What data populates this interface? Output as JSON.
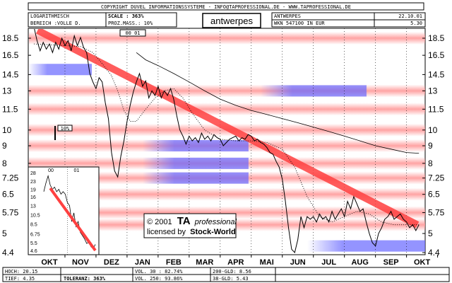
{
  "copyright": "COPYRIGHT  DUVEL INFORMATIONSSYSTEME - INFO@TAPROFESSIONAL.DE - WWW.TAPROFESSIONAL.DE",
  "header": {
    "scale_type": "LOGARITHMISCH",
    "range": "BEREICH :VOLLE D.",
    "scale": "SCALE : 363%",
    "proz_mass": "PROZ.MASS.:  10%",
    "title": "antwerpes",
    "name_upper": "ANTWERPES",
    "wkn": "WKN 547100    IN EUR",
    "date": "22.10.01",
    "last_price": "5.30",
    "period_selector": "00 01",
    "scale_marker": "10%"
  },
  "stamp": {
    "line1": "© 2001",
    "line2_bold": "TA",
    "line2_italic": "professional",
    "line3": "licensed by",
    "line3_bold": "Stock-World"
  },
  "footer": {
    "hoch": "HOCH: 20.15",
    "tief": "TIEF: 4.35",
    "toleranz": "TOLERANZ:  363%",
    "vol30": "VOL. 30 : 82.74%",
    "vol250": "VOL. 250: 93.86%",
    "gld200": "200-GLD: 8.56",
    "gld38": "38-GLD: 5.43"
  },
  "colors": {
    "price": "#000000",
    "trendline": "#ff4040",
    "resistance_band": "#ff9999",
    "support_band": "#6666ff"
  },
  "chart_data": {
    "type": "line",
    "scale": "log",
    "ylim": [
      4.4,
      20.5
    ],
    "yticks": [
      "18.5",
      "16.5",
      "14.5",
      "13",
      "11.5",
      "10",
      "9",
      "8",
      "7.25",
      "6.5",
      "5.75",
      "5",
      "4.4"
    ],
    "ytick_values": [
      18.5,
      16.5,
      14.5,
      13,
      11.5,
      10,
      9,
      8,
      7.25,
      6.5,
      5.75,
      5,
      4.4
    ],
    "months": [
      "OKT",
      "NOV",
      "DEZ",
      "JAN",
      "FEB",
      "MAR",
      "APR",
      "MAI",
      "JUN",
      "JUL",
      "AUG",
      "SEP",
      "OKT"
    ],
    "resistance_levels": [
      18.5,
      13,
      11.5,
      10,
      9,
      8,
      7.25,
      6.5,
      5.75,
      5.3
    ],
    "support_levels": [
      15,
      13,
      9,
      8,
      7.25,
      4.6
    ],
    "trendline": [
      {
        "x": 0.12,
        "y": 19.5
      },
      {
        "x": 12.35,
        "y": 5.3
      }
    ],
    "series": [
      {
        "line": "solid",
        "x": [
          0,
          0.1,
          0.2,
          0.3,
          0.4,
          0.5,
          0.6,
          0.7,
          0.8,
          0.9,
          1.0,
          1.1,
          1.2,
          1.3,
          1.4,
          1.5,
          1.6,
          1.7,
          1.8,
          1.9,
          2.0,
          2.1,
          2.2,
          2.3,
          2.4,
          2.5,
          2.6,
          2.7,
          2.8,
          2.9,
          3.0,
          3.1,
          3.2,
          3.3,
          3.4,
          3.5,
          3.6,
          3.7,
          3.8,
          3.9,
          4.0,
          4.1,
          4.2,
          4.3,
          4.4,
          4.5,
          4.6,
          4.7,
          4.8,
          4.9,
          5.0,
          5.1,
          5.2,
          5.3,
          5.4,
          5.5,
          5.6,
          5.7,
          5.8,
          5.9,
          6.0,
          6.1,
          6.2,
          6.3,
          6.4,
          6.5,
          6.6,
          6.7,
          6.8,
          6.9,
          7.0,
          7.1,
          7.2,
          7.3,
          7.4,
          7.5,
          7.6,
          7.7,
          7.8,
          7.9,
          8.0,
          8.1,
          8.2,
          8.3,
          8.4,
          8.5,
          8.6,
          8.7,
          8.8,
          8.9,
          9.0,
          9.1,
          9.2,
          9.3,
          9.4,
          9.5,
          9.6,
          9.7,
          9.8,
          9.9,
          10.0,
          10.1,
          10.2,
          10.3,
          10.4,
          10.5,
          10.6,
          10.7,
          10.8,
          10.9,
          11.0,
          11.1,
          11.2,
          11.3,
          11.4,
          11.5,
          11.6,
          11.7,
          11.8,
          11.9,
          12.0,
          12.1,
          12.2,
          12.3,
          12.4
        ],
        "y": [
          20.0,
          18.2,
          17.0,
          18.0,
          17.2,
          17.8,
          16.8,
          18.0,
          17.2,
          18.5,
          17.6,
          18.2,
          17.0,
          18.8,
          17.6,
          18.6,
          17.4,
          16.8,
          14.6,
          13.8,
          13.2,
          14.2,
          13.8,
          12.0,
          10.8,
          8.6,
          7.6,
          7.3,
          8.4,
          9.3,
          10.6,
          11.8,
          12.9,
          13.8,
          14.6,
          13.4,
          13.9,
          12.4,
          13.0,
          12.6,
          13.4,
          12.4,
          13.0,
          12.6,
          13.2,
          12.3,
          11.0,
          10.0,
          9.6,
          9.1,
          9.6,
          9.3,
          9.5,
          9.2,
          9.8,
          9.4,
          9.6,
          9.3,
          9.7,
          9.5,
          9.4,
          9.0,
          9.2,
          9.4,
          9.5,
          9.6,
          9.3,
          9.5,
          9.4,
          9.7,
          9.6,
          9.3,
          9.4,
          9.2,
          9.1,
          8.9,
          8.6,
          8.5,
          8.1,
          7.8,
          7.2,
          6.2,
          5.2,
          4.5,
          4.4,
          4.8,
          5.6,
          5.2,
          5.6,
          5.5,
          5.6,
          5.4,
          5.7,
          5.5,
          5.6,
          5.4,
          5.8,
          5.5,
          5.7,
          5.9,
          5.6,
          6.2,
          5.9,
          6.4,
          6.1,
          5.8,
          5.9,
          5.4,
          5.0,
          4.7,
          4.6,
          5.0,
          5.2,
          5.5,
          5.6,
          5.8,
          5.5,
          5.6,
          5.7,
          5.5,
          5.4,
          5.2,
          5.3,
          5.1,
          5.3
        ]
      },
      {
        "line": "dotted",
        "x": [
          0,
          1.0,
          1.5,
          1.9,
          2.2,
          2.5,
          2.7,
          2.9,
          3.1,
          3.3,
          3.5,
          3.7,
          3.9,
          4.2,
          4.5,
          4.8,
          5.1,
          5.5,
          6.0,
          6.5,
          7.0,
          7.5,
          8.0,
          8.4,
          8.8,
          9.2,
          9.6,
          10.0,
          10.4,
          10.8,
          11.2,
          11.6,
          12.0,
          12.4
        ],
        "y": [
          17.8,
          17.6,
          17.5,
          16.8,
          15.6,
          14.4,
          13.0,
          11.4,
          10.6,
          10.6,
          11.2,
          11.8,
          12.4,
          13.0,
          13.2,
          12.4,
          11.2,
          10.0,
          9.4,
          9.3,
          9.3,
          9.2,
          8.8,
          7.8,
          6.4,
          5.6,
          5.4,
          5.6,
          5.8,
          5.7,
          5.4,
          5.3,
          5.3,
          5.3
        ]
      },
      {
        "line": "solid-thin",
        "x": [
          3.3,
          3.6,
          4.0,
          4.5,
          5.0,
          5.5,
          6.0,
          6.5,
          7.0,
          7.5,
          8.0,
          8.5,
          9.0,
          9.5,
          10.0,
          10.5,
          11.0,
          11.5,
          12.0,
          12.4
        ],
        "y": [
          16.8,
          16.0,
          15.4,
          14.6,
          13.8,
          13.0,
          12.3,
          11.8,
          11.4,
          11.1,
          10.8,
          10.5,
          10.2,
          9.9,
          9.6,
          9.3,
          9.0,
          8.8,
          8.6,
          8.56
        ]
      }
    ],
    "inset": {
      "period_labels": [
        "00",
        "01"
      ],
      "yticks": [
        "28",
        "23",
        "19",
        "16",
        "13",
        "10.5",
        "8.5",
        "6.75",
        "5.5",
        "4.6"
      ],
      "ytick_values": [
        28,
        23,
        19,
        16,
        13,
        10.5,
        8.5,
        6.75,
        5.5,
        4.6
      ],
      "x": [
        0,
        0.5,
        1,
        1.5,
        2,
        2.5,
        3,
        3.5,
        4,
        4.5,
        5,
        5.5,
        6,
        6.5,
        7,
        7.5,
        8,
        8.5,
        9,
        9.5,
        10,
        10.5,
        11,
        11.5,
        12
      ],
      "y": [
        18,
        22,
        26,
        21,
        19,
        20,
        18,
        19,
        17,
        18,
        17,
        14,
        13,
        9,
        11,
        8,
        9,
        7,
        6.5,
        6,
        5.4,
        5.6,
        5.0,
        4.8,
        5.3
      ],
      "trendline": [
        {
          "x": 1.5,
          "y": 19.5
        },
        {
          "x": 12,
          "y": 4.6
        }
      ]
    }
  }
}
